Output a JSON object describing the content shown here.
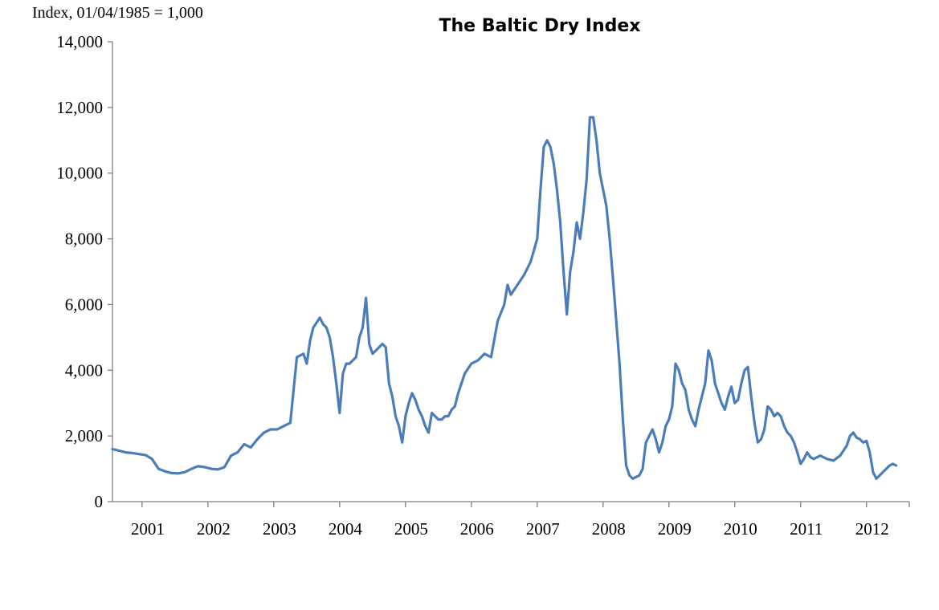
{
  "chart_data": {
    "type": "line",
    "title": "The Baltic Dry Index",
    "ylabel": "Index, 01/04/1985 = 1,000",
    "xlabel": "",
    "xlim": [
      2000.55,
      2012.65
    ],
    "ylim": [
      0,
      14000
    ],
    "grid": false,
    "legend": "none",
    "yticks": [
      "0",
      "2,000",
      "4,000",
      "6,000",
      "8,000",
      "10,000",
      "12,000",
      "14,000"
    ],
    "xtick_labels": [
      "2001",
      "2002",
      "2003",
      "2004",
      "2005",
      "2006",
      "2007",
      "2008",
      "2009",
      "2010",
      "2011",
      "2012"
    ],
    "colors": {
      "line": "#4a7ebb",
      "axis": "#7f7f7f"
    },
    "series": [
      {
        "x": [
          2000.55,
          2000.65,
          2000.75,
          2000.85,
          2000.95,
          2001.05,
          2001.15,
          2001.25,
          2001.35,
          2001.45,
          2001.55,
          2001.65,
          2001.75,
          2001.85,
          2001.95,
          2002.05,
          2002.15,
          2002.25,
          2002.35,
          2002.45,
          2002.55,
          2002.65,
          2002.75,
          2002.85,
          2002.95,
          2003.05,
          2003.15,
          2003.25,
          2003.35,
          2003.45,
          2003.5,
          2003.55,
          2003.6,
          2003.7,
          2003.75,
          2003.8,
          2003.85,
          2003.9,
          2003.95,
          2004.0,
          2004.05,
          2004.1,
          2004.15,
          2004.2,
          2004.25,
          2004.3,
          2004.35,
          2004.4,
          2004.45,
          2004.5,
          2004.55,
          2004.6,
          2004.65,
          2004.7,
          2004.75,
          2004.8,
          2004.85,
          2004.9,
          2004.95,
          2005.0,
          2005.05,
          2005.1,
          2005.15,
          2005.2,
          2005.25,
          2005.3,
          2005.35,
          2005.4,
          2005.45,
          2005.5,
          2005.55,
          2005.6,
          2005.65,
          2005.7,
          2005.75,
          2005.8,
          2005.9,
          2006.0,
          2006.1,
          2006.2,
          2006.3,
          2006.4,
          2006.5,
          2006.55,
          2006.6,
          2006.7,
          2006.8,
          2006.9,
          2007.0,
          2007.05,
          2007.1,
          2007.15,
          2007.2,
          2007.25,
          2007.3,
          2007.35,
          2007.4,
          2007.45,
          2007.5,
          2007.55,
          2007.6,
          2007.65,
          2007.7,
          2007.75,
          2007.8,
          2007.85,
          2007.9,
          2007.95,
          2008.0,
          2008.05,
          2008.1,
          2008.15,
          2008.2,
          2008.25,
          2008.3,
          2008.35,
          2008.4,
          2008.45,
          2008.5,
          2008.55,
          2008.6,
          2008.65,
          2008.7,
          2008.75,
          2008.8,
          2008.85,
          2008.9,
          2008.95,
          2009.0,
          2009.05,
          2009.1,
          2009.15,
          2009.2,
          2009.25,
          2009.3,
          2009.35,
          2009.4,
          2009.45,
          2009.5,
          2009.55,
          2009.6,
          2009.65,
          2009.7,
          2009.75,
          2009.8,
          2009.85,
          2009.9,
          2009.95,
          2010.0,
          2010.05,
          2010.1,
          2010.15,
          2010.2,
          2010.25,
          2010.3,
          2010.35,
          2010.4,
          2010.45,
          2010.5,
          2010.55,
          2010.6,
          2010.65,
          2010.7,
          2010.75,
          2010.8,
          2010.85,
          2010.9,
          2010.95,
          2011.0,
          2011.05,
          2011.1,
          2011.15,
          2011.2,
          2011.3,
          2011.4,
          2011.5,
          2011.6,
          2011.7,
          2011.75,
          2011.8,
          2011.85,
          2011.9,
          2011.95,
          2012.0,
          2012.05,
          2012.1,
          2012.15,
          2012.2,
          2012.25,
          2012.3,
          2012.35,
          2012.4,
          2012.45
        ],
        "values": [
          1600,
          1550,
          1500,
          1480,
          1450,
          1420,
          1300,
          1000,
          920,
          870,
          860,
          900,
          1000,
          1080,
          1050,
          1000,
          980,
          1050,
          1400,
          1500,
          1750,
          1650,
          1900,
          2100,
          2200,
          2200,
          2300,
          2400,
          4400,
          4500,
          4200,
          4900,
          5300,
          5600,
          5400,
          5300,
          5000,
          4400,
          3600,
          2700,
          3900,
          4200,
          4200,
          4300,
          4400,
          5000,
          5300,
          6200,
          4800,
          4500,
          4600,
          4700,
          4800,
          4700,
          3600,
          3200,
          2600,
          2300,
          1800,
          2600,
          3000,
          3300,
          3100,
          2800,
          2600,
          2300,
          2100,
          2700,
          2600,
          2500,
          2500,
          2600,
          2600,
          2800,
          2900,
          3300,
          3900,
          4200,
          4300,
          4500,
          4400,
          5500,
          6000,
          6600,
          6300,
          6600,
          6900,
          7300,
          8000,
          9500,
          10800,
          11000,
          10800,
          10300,
          9500,
          8500,
          7000,
          5700,
          7000,
          7600,
          8500,
          8000,
          8800,
          9800,
          11700,
          11700,
          11000,
          10000,
          9500,
          9000,
          8000,
          6800,
          5500,
          4200,
          2500,
          1100,
          800,
          700,
          750,
          800,
          1000,
          1800,
          2000,
          2200,
          1900,
          1500,
          1800,
          2300,
          2500,
          2900,
          4200,
          4000,
          3600,
          3400,
          2800,
          2500,
          2300,
          2800,
          3200,
          3600,
          4600,
          4300,
          3600,
          3300,
          3000,
          2800,
          3200,
          3500,
          3000,
          3100,
          3600,
          4000,
          4100,
          3200,
          2400,
          1800,
          1900,
          2200,
          2900,
          2800,
          2600,
          2700,
          2600,
          2300,
          2100,
          2000,
          1800,
          1500,
          1150,
          1300,
          1500,
          1350,
          1300,
          1400,
          1300,
          1250,
          1400,
          1700,
          2000,
          2100,
          1950,
          1900,
          1800,
          1850,
          1500,
          900,
          700,
          800,
          900,
          1000,
          1100,
          1150,
          1100
        ]
      }
    ]
  }
}
